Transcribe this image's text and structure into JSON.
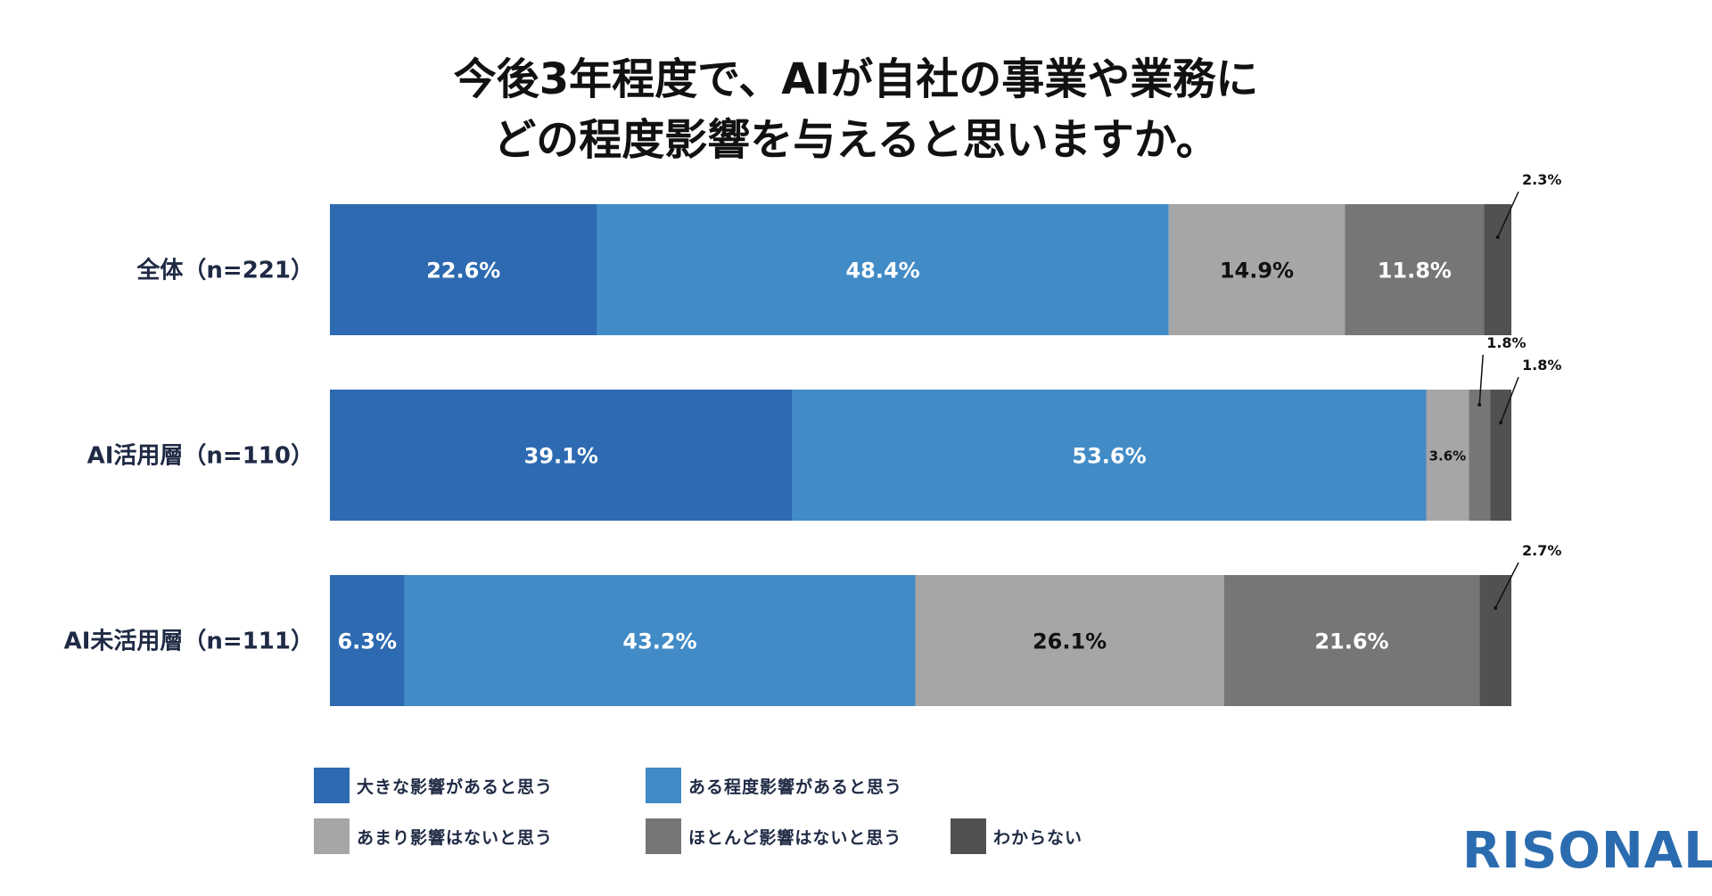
{
  "title_lines": [
    "今後3年程度で、AIが自社の事業や業務に",
    "どの程度影響を与えると思いますか。"
  ],
  "logo": "RISONAL",
  "colors": {
    "series": [
      "#2e6ab1",
      "#418bc7",
      "#a6a6a6",
      "#767676",
      "#515151"
    ],
    "label_light": "#ffffff",
    "label_dark": "#111111",
    "category_label": "#1f2a44"
  },
  "chart_data": {
    "type": "bar",
    "orientation": "horizontal",
    "stacked": true,
    "xlim": [
      0,
      100
    ],
    "grid": false,
    "legend_position": "bottom",
    "categories": [
      "全体（n=221）",
      "AI活用層（n=110）",
      "AI未活用層（n=111）"
    ],
    "series": [
      {
        "name": "大きな影響があると思う",
        "values": [
          22.6,
          39.1,
          6.3
        ],
        "labels": [
          "22.6%",
          "39.1%",
          "6.3%"
        ]
      },
      {
        "name": "ある程度影響があると思う",
        "values": [
          48.4,
          53.6,
          43.2
        ],
        "labels": [
          "48.4%",
          "53.6%",
          "43.2%"
        ]
      },
      {
        "name": "あまり影響はないと思う",
        "values": [
          14.9,
          3.6,
          26.1
        ],
        "labels": [
          "14.9%",
          "3.6%",
          "26.1%"
        ]
      },
      {
        "name": "ほとんど影響はないと思う",
        "values": [
          11.8,
          1.8,
          21.6
        ],
        "labels": [
          "11.8%",
          "1.8%",
          "21.6%"
        ]
      },
      {
        "name": "わからない",
        "values": [
          2.3,
          1.8,
          2.7
        ],
        "labels": [
          "2.3%",
          "1.8%",
          "2.7%"
        ]
      }
    ]
  }
}
